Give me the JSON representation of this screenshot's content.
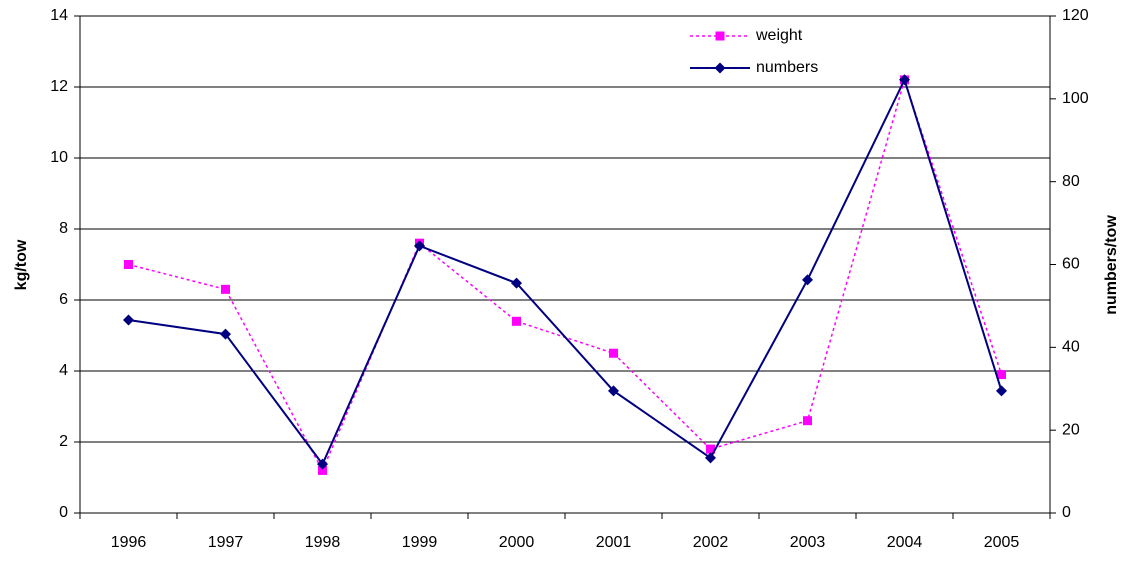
{
  "chart_data": {
    "type": "line",
    "categories": [
      "1996",
      "1997",
      "1998",
      "1999",
      "2000",
      "2001",
      "2002",
      "2003",
      "2004",
      "2005"
    ],
    "y_label": "kg/tow",
    "y2_label": "numbers/tow",
    "ylim": [
      0,
      14
    ],
    "yticks": [
      0,
      2,
      4,
      6,
      8,
      10,
      12,
      14
    ],
    "y2lim": [
      0,
      120
    ],
    "y2ticks": [
      0,
      20,
      40,
      60,
      80,
      100,
      120
    ],
    "grid": true,
    "legend": "top-right",
    "series": [
      {
        "name": "weight",
        "color": "#ff00ff",
        "marker": "square",
        "dashed": true,
        "values": [
          7.0,
          6.3,
          1.2,
          7.6,
          5.4,
          4.5,
          1.8,
          2.6,
          12.2,
          3.9
        ]
      },
      {
        "name": "numbers",
        "color": "#000080",
        "marker": "diamond",
        "dashed": false,
        "axis": "y2",
        "values": [
          46.6,
          43.2,
          11.8,
          64.5,
          55.5,
          29.5,
          13.3,
          56.3,
          104.6,
          29.5
        ]
      }
    ]
  }
}
